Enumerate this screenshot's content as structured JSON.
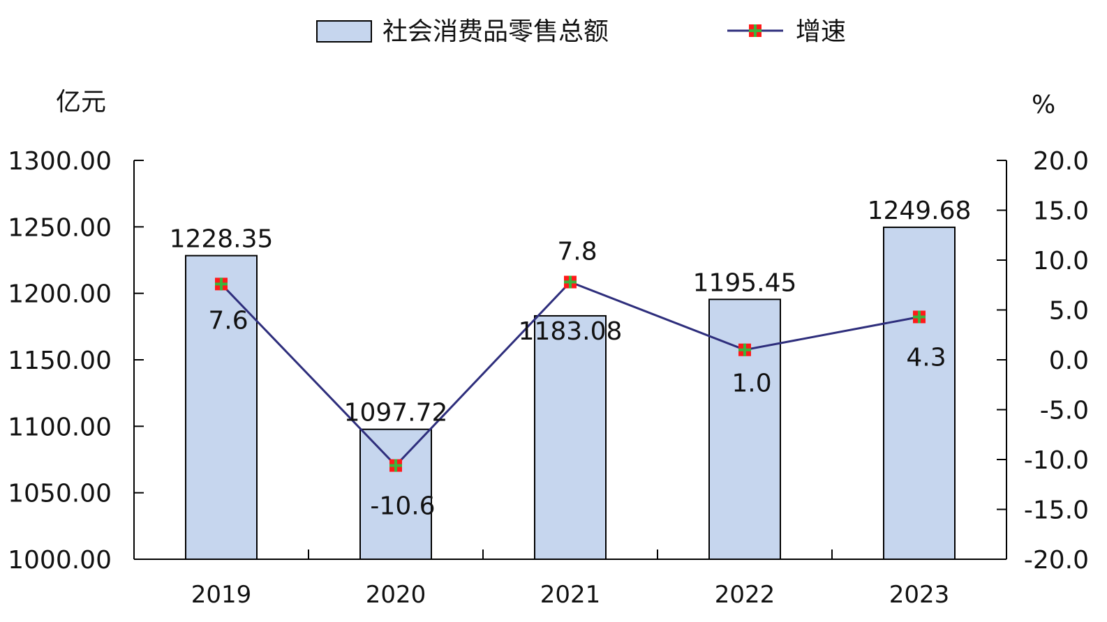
{
  "chart_data": {
    "type": "bar+line",
    "categories": [
      "2019",
      "2020",
      "2021",
      "2022",
      "2023"
    ],
    "series": [
      {
        "name": "社会消费品零售总额",
        "type": "bar",
        "axis": "left",
        "values": [
          1228.35,
          1097.72,
          1183.08,
          1195.45,
          1249.68
        ],
        "labels": [
          "1228.35",
          "1097.72",
          "1183.08",
          "1195.45",
          "1249.68"
        ]
      },
      {
        "name": "增速",
        "type": "line",
        "axis": "right",
        "values": [
          7.6,
          -10.6,
          7.8,
          1.0,
          4.3
        ],
        "labels": [
          "7.6",
          "-10.6",
          "7.8",
          "1.0",
          "4.3"
        ]
      }
    ],
    "left_axis": {
      "unit": "亿元",
      "range": [
        1000,
        1300
      ],
      "ticks": [
        "1000.00",
        "1050.00",
        "1100.00",
        "1150.00",
        "1200.00",
        "1250.00",
        "1300.00"
      ]
    },
    "right_axis": {
      "unit": "%",
      "range": [
        -20,
        20
      ],
      "ticks": [
        "-20.0",
        "-15.0",
        "-10.0",
        "-5.0",
        "0.0",
        "5.0",
        "10.0",
        "15.0",
        "20.0"
      ]
    },
    "legend_position": "top",
    "grid": false,
    "colors": {
      "bar_fill": "#c6d6ee",
      "bar_stroke": "#000000",
      "line": "#2e2e7c",
      "marker_fill": "#ff1a1a",
      "marker_cross": "#3cb43c"
    }
  }
}
